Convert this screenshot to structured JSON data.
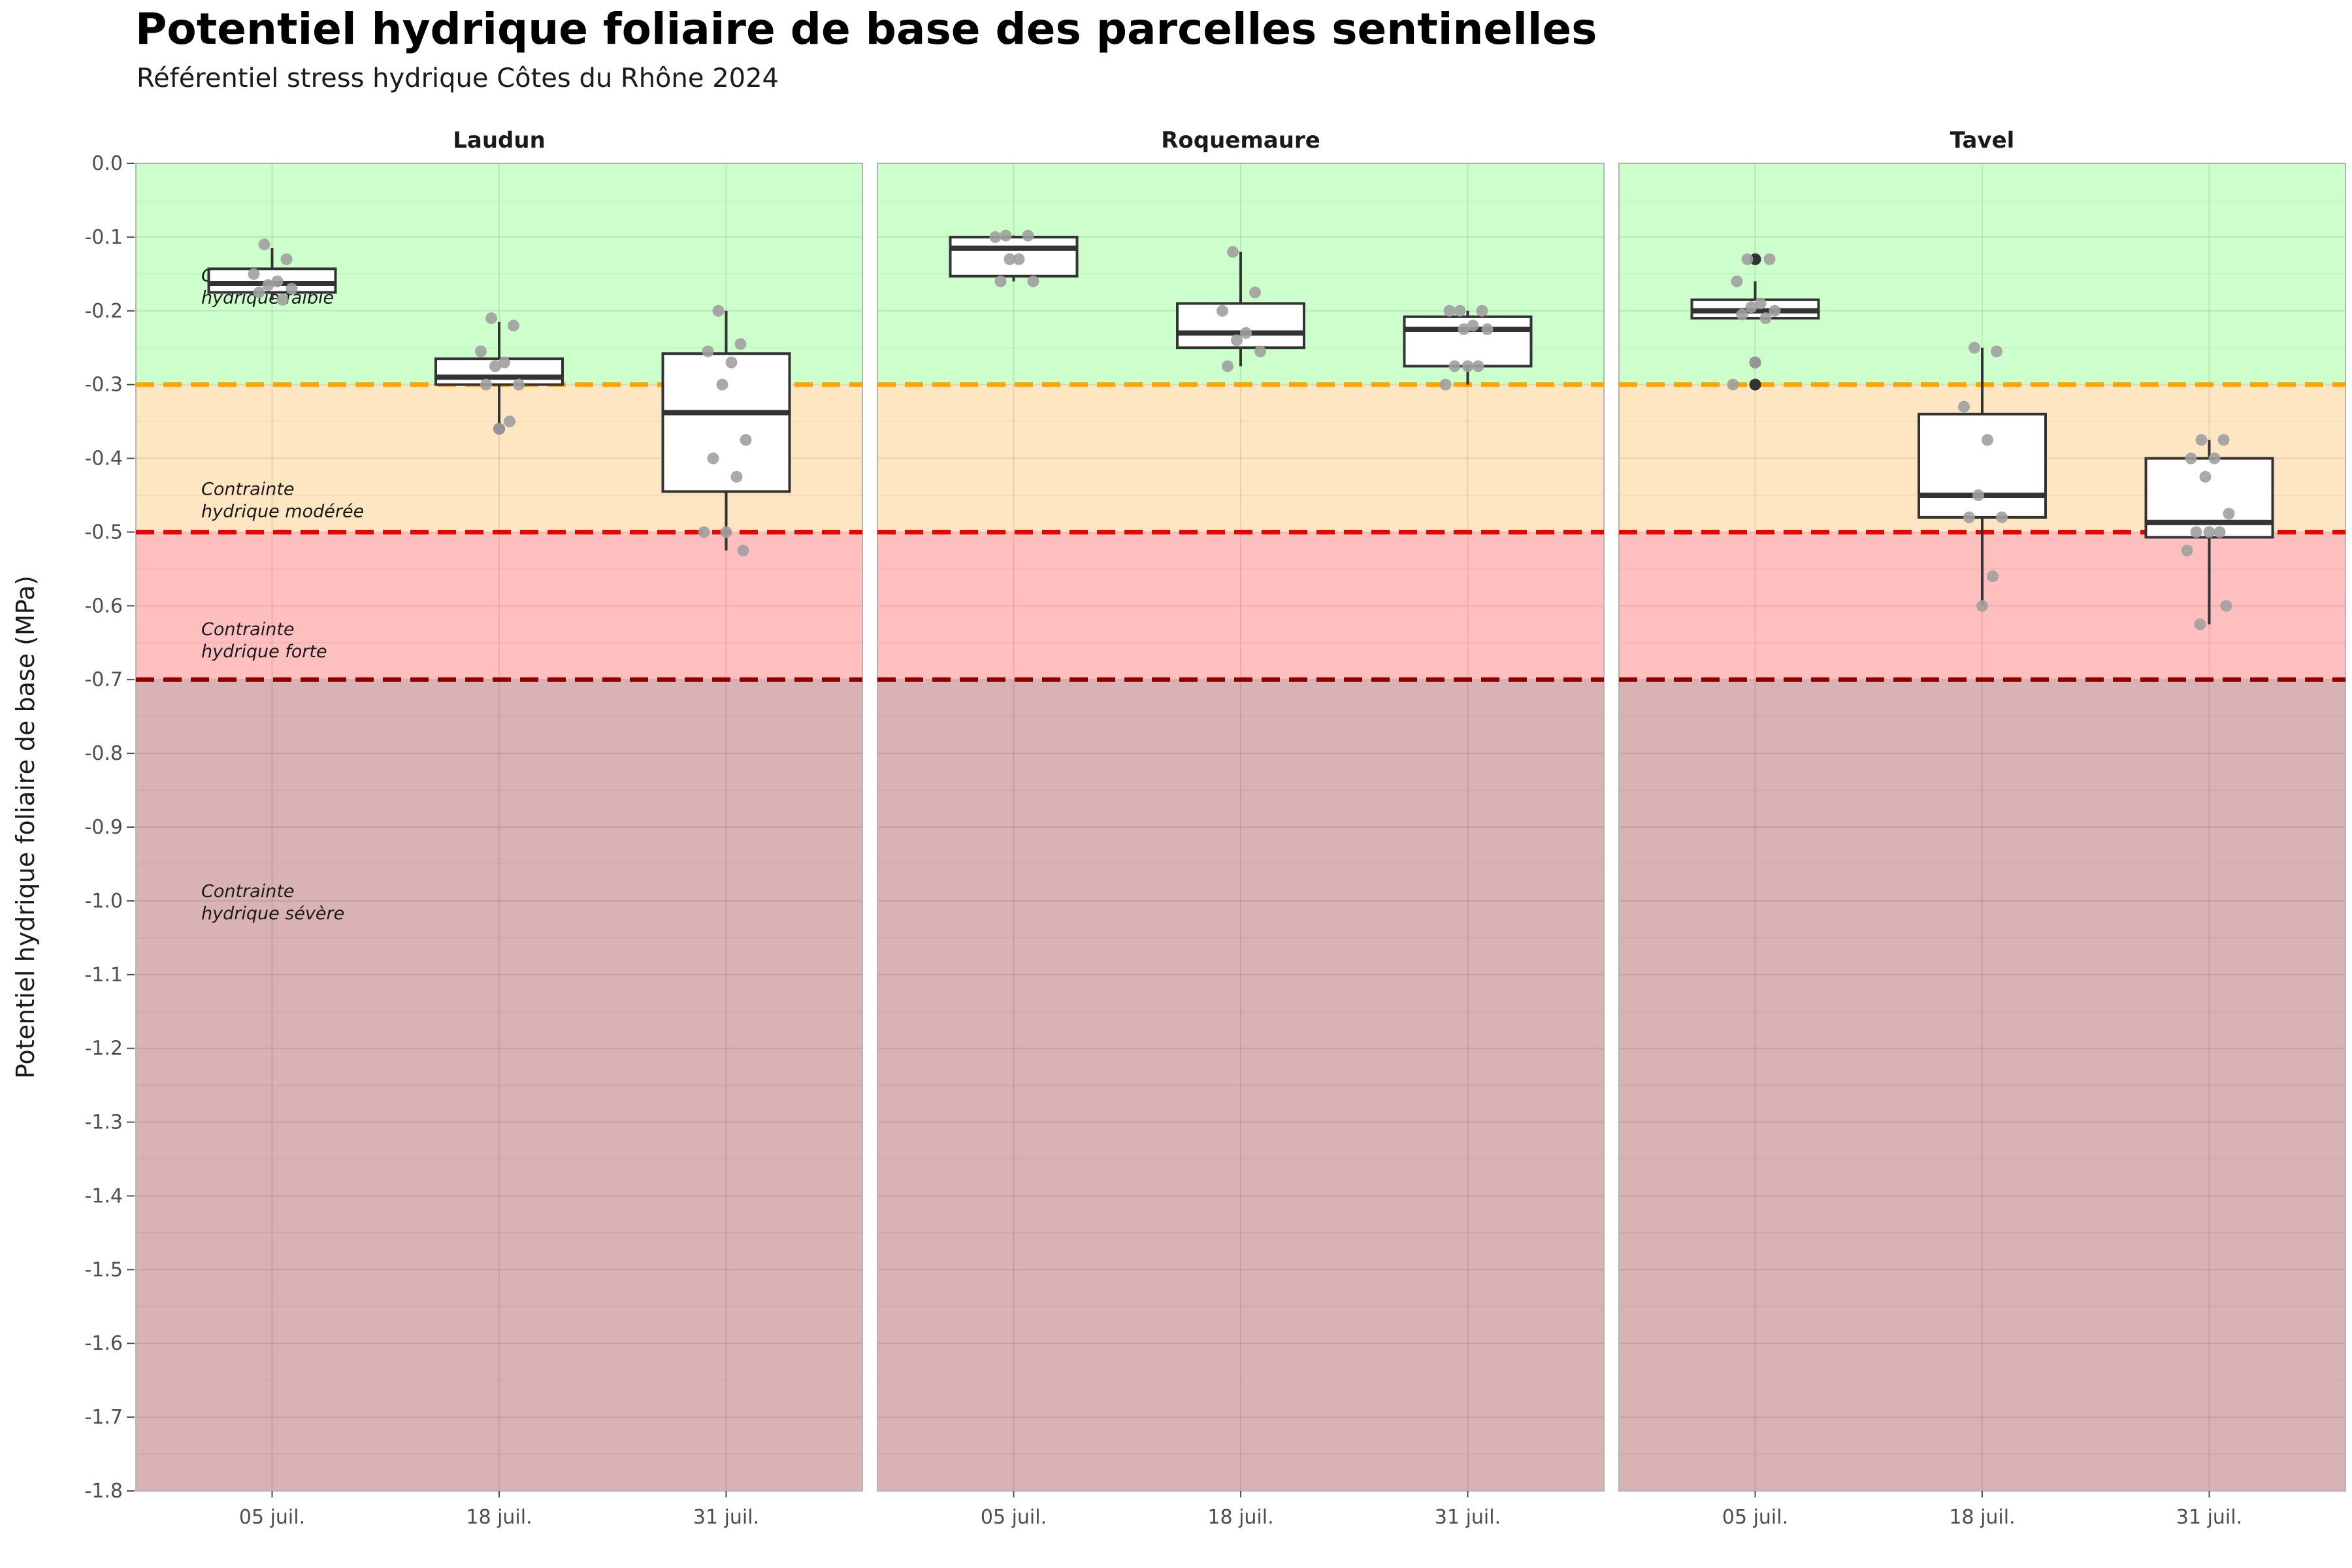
{
  "chart_data": {
    "type": "box",
    "title": "Potentiel hydrique foliaire de base des parcelles sentinelles",
    "subtitle": "Référentiel stress hydrique Côtes du Rhône 2024",
    "ylabel": "Potentiel hydrique foliaire de base (MPa)",
    "xlabel": "",
    "ylim": [
      -1.8,
      0.0
    ],
    "y_ticks": [
      "0.0",
      "-0.1",
      "-0.2",
      "-0.3",
      "-0.4",
      "-0.5",
      "-0.6",
      "-0.7",
      "-0.8",
      "-0.9",
      "-1.0",
      "-1.1",
      "-1.2",
      "-1.3",
      "-1.4",
      "-1.5",
      "-1.6",
      "-1.7",
      "-1.8"
    ],
    "categories": [
      "05 juil.",
      "18 juil.",
      "31 juil."
    ],
    "grid": true,
    "zones": [
      {
        "label_line1": "Contrainte",
        "label_line2": "hydrique faible",
        "from": 0.0,
        "to": -0.3,
        "color": "#ccffcc",
        "label_y": -0.165
      },
      {
        "label_line1": "Contrainte",
        "label_line2": "hydrique modérée",
        "from": -0.3,
        "to": -0.5,
        "color": "#ffe6c2",
        "label_y": -0.455
      },
      {
        "label_line1": "Contrainte",
        "label_line2": "hydrique forte",
        "from": -0.5,
        "to": -0.7,
        "color": "#ffbfbf",
        "label_y": -0.645
      },
      {
        "label_line1": "Contrainte",
        "label_line2": "hydrique sévère",
        "from": -0.7,
        "to": -1.8,
        "color": "#d9b3b3",
        "label_y": -1.0
      }
    ],
    "thresholds": [
      {
        "value": -0.3,
        "color": "#ffa500"
      },
      {
        "value": -0.5,
        "color": "#ee0000"
      },
      {
        "value": -0.7,
        "color": "#8b0000"
      }
    ],
    "panels": [
      {
        "name": "Laudun",
        "boxes": [
          {
            "category": "05 juil.",
            "q1": -0.175,
            "median": -0.163,
            "q3": -0.143,
            "lower": -0.185,
            "upper": -0.115,
            "points": [
              -0.11,
              -0.13,
              -0.15,
              -0.16,
              -0.165,
              -0.17,
              -0.175,
              -0.185
            ],
            "outliers": []
          },
          {
            "category": "18 juil.",
            "q1": -0.3,
            "median": -0.29,
            "q3": -0.265,
            "lower": -0.36,
            "upper": -0.215,
            "points": [
              -0.21,
              -0.22,
              -0.255,
              -0.27,
              -0.275,
              -0.3,
              -0.3,
              -0.35,
              -0.36
            ],
            "outliers": [
              -0.36
            ]
          },
          {
            "category": "31 juil.",
            "q1": -0.445,
            "median": -0.338,
            "q3": -0.258,
            "lower": -0.525,
            "upper": -0.2,
            "points": [
              -0.2,
              -0.245,
              -0.255,
              -0.27,
              -0.3,
              -0.375,
              -0.4,
              -0.425,
              -0.5,
              -0.5,
              -0.525
            ],
            "outliers": []
          }
        ]
      },
      {
        "name": "Roquemaure",
        "boxes": [
          {
            "category": "05 juil.",
            "q1": -0.153,
            "median": -0.115,
            "q3": -0.1,
            "lower": -0.16,
            "upper": -0.098,
            "points": [
              -0.098,
              -0.098,
              -0.1,
              -0.13,
              -0.13,
              -0.16,
              -0.16
            ],
            "outliers": []
          },
          {
            "category": "18 juil.",
            "q1": -0.25,
            "median": -0.23,
            "q3": -0.19,
            "lower": -0.275,
            "upper": -0.12,
            "points": [
              -0.12,
              -0.175,
              -0.2,
              -0.23,
              -0.24,
              -0.255,
              -0.275
            ],
            "outliers": []
          },
          {
            "category": "31 juil.",
            "q1": -0.275,
            "median": -0.225,
            "q3": -0.208,
            "lower": -0.3,
            "upper": -0.2,
            "points": [
              -0.2,
              -0.2,
              -0.2,
              -0.22,
              -0.225,
              -0.225,
              -0.275,
              -0.275,
              -0.275,
              -0.3
            ],
            "outliers": []
          }
        ]
      },
      {
        "name": "Tavel",
        "boxes": [
          {
            "category": "05 juil.",
            "q1": -0.21,
            "median": -0.2,
            "q3": -0.185,
            "lower": -0.21,
            "upper": -0.16,
            "points": [
              -0.13,
              -0.13,
              -0.16,
              -0.19,
              -0.195,
              -0.2,
              -0.205,
              -0.21,
              -0.27,
              -0.3
            ],
            "outliers": [
              -0.13,
              -0.27,
              -0.3
            ]
          },
          {
            "category": "18 juil.",
            "q1": -0.48,
            "median": -0.45,
            "q3": -0.34,
            "lower": -0.6,
            "upper": -0.25,
            "points": [
              -0.25,
              -0.255,
              -0.33,
              -0.375,
              -0.45,
              -0.48,
              -0.48,
              -0.56,
              -0.6
            ],
            "outliers": []
          },
          {
            "category": "31 juil.",
            "q1": -0.507,
            "median": -0.487,
            "q3": -0.4,
            "lower": -0.625,
            "upper": -0.375,
            "points": [
              -0.375,
              -0.375,
              -0.4,
              -0.4,
              -0.425,
              -0.475,
              -0.5,
              -0.5,
              -0.5,
              -0.525,
              -0.6,
              -0.625
            ],
            "outliers": []
          }
        ]
      }
    ]
  }
}
